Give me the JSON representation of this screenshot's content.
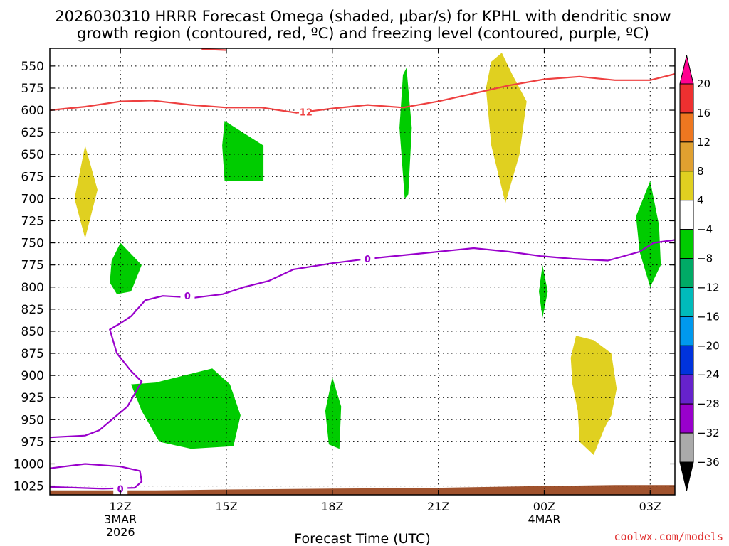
{
  "title": {
    "line1": "2026030310 HRRR Forecast Omega (shaded, μbar/s) for KPHL with dendritic snow",
    "line2": "growth region (contoured, red, ºC) and freezing level (contoured, purple, ºC)"
  },
  "chart_data": {
    "type": "time-height cross-section",
    "y_axis": {
      "unit": "hPa",
      "ticks": [
        550,
        575,
        600,
        625,
        650,
        675,
        700,
        725,
        750,
        775,
        800,
        825,
        850,
        875,
        900,
        925,
        950,
        975,
        1000,
        1025
      ],
      "range": [
        530,
        1035
      ],
      "grid": "dotted"
    },
    "x_axis": {
      "label": "Forecast Time (UTC)",
      "range_hours": [
        10,
        27.7
      ],
      "ticks": [
        {
          "hour": 12,
          "label": "12Z",
          "sub": [
            "3MAR",
            "2026"
          ]
        },
        {
          "hour": 15,
          "label": "15Z",
          "sub": []
        },
        {
          "hour": 18,
          "label": "18Z",
          "sub": []
        },
        {
          "hour": 21,
          "label": "21Z",
          "sub": []
        },
        {
          "hour": 24,
          "label": "00Z",
          "sub": [
            "4MAR"
          ]
        },
        {
          "hour": 27,
          "label": "03Z",
          "sub": []
        }
      ]
    },
    "colorbar": {
      "levels": [
        20,
        16,
        12,
        8,
        4,
        -4,
        -8,
        -12,
        -16,
        -20,
        -24,
        -28,
        -32,
        -36
      ],
      "colors": [
        "#ff0090",
        "#ee3030",
        "#ee7720",
        "#e0a030",
        "#e0d020",
        "#ffffff",
        "#00cc00",
        "#00aa66",
        "#00bbbb",
        "#0099ee",
        "#0033dd",
        "#6622cc",
        "#9900cc",
        "#aaaaaa",
        "#000000"
      ]
    },
    "contour_labels": {
      "dgz": "-12",
      "freezing": "0"
    },
    "omega_patches": [
      {
        "color": "#e0d020",
        "value_range": "4 to 8",
        "points": [
          [
            11.0,
            640
          ],
          [
            11.35,
            690
          ],
          [
            11.0,
            745
          ],
          [
            10.7,
            700
          ]
        ]
      },
      {
        "color": "#00cc00",
        "value_range": "-4 to -8",
        "points": [
          [
            12.0,
            750
          ],
          [
            12.6,
            775
          ],
          [
            12.3,
            805
          ],
          [
            11.9,
            808
          ],
          [
            11.7,
            795
          ],
          [
            11.75,
            770
          ]
        ]
      },
      {
        "color": "#00cc00",
        "value_range": "-4 to -8",
        "points": [
          [
            14.95,
            612
          ],
          [
            16.05,
            640
          ],
          [
            16.05,
            680
          ],
          [
            14.95,
            680
          ],
          [
            14.88,
            640
          ]
        ]
      },
      {
        "color": "#00cc00",
        "value_range": "-4 to -8",
        "points": [
          [
            12.3,
            910
          ],
          [
            13.0,
            908
          ],
          [
            14.6,
            892
          ],
          [
            15.1,
            910
          ],
          [
            15.4,
            945
          ],
          [
            15.2,
            980
          ],
          [
            14.0,
            983
          ],
          [
            13.1,
            975
          ],
          [
            12.6,
            940
          ]
        ]
      },
      {
        "color": "#00cc00",
        "value_range": "-4 to -8",
        "points": [
          [
            18.0,
            902
          ],
          [
            18.25,
            935
          ],
          [
            18.2,
            983
          ],
          [
            17.9,
            978
          ],
          [
            17.8,
            940
          ]
        ]
      },
      {
        "color": "#00cc00",
        "value_range": "-4 to -8",
        "points": [
          [
            20.1,
            552
          ],
          [
            20.25,
            620
          ],
          [
            20.15,
            695
          ],
          [
            20.05,
            700
          ],
          [
            19.9,
            620
          ],
          [
            20.0,
            560
          ]
        ]
      },
      {
        "color": "#00cc00",
        "value_range": "-4 to -8",
        "points": [
          [
            23.95,
            775
          ],
          [
            24.1,
            805
          ],
          [
            23.95,
            835
          ],
          [
            23.85,
            805
          ]
        ]
      },
      {
        "color": "#00cc00",
        "value_range": "-4 to -8",
        "points": [
          [
            27.0,
            680
          ],
          [
            27.25,
            730
          ],
          [
            27.3,
            775
          ],
          [
            27.0,
            800
          ],
          [
            26.7,
            760
          ],
          [
            26.6,
            720
          ]
        ]
      },
      {
        "color": "#e0d020",
        "value_range": "4 to 8",
        "points": [
          [
            22.8,
            535
          ],
          [
            23.1,
            560
          ],
          [
            23.5,
            590
          ],
          [
            23.3,
            650
          ],
          [
            22.9,
            705
          ],
          [
            22.5,
            640
          ],
          [
            22.35,
            575
          ],
          [
            22.5,
            545
          ]
        ]
      },
      {
        "color": "#e0d020",
        "value_range": "4 to 8",
        "points": [
          [
            24.9,
            855
          ],
          [
            25.4,
            860
          ],
          [
            25.9,
            875
          ],
          [
            26.05,
            915
          ],
          [
            25.9,
            945
          ],
          [
            25.7,
            960
          ],
          [
            25.4,
            990
          ],
          [
            25.0,
            975
          ],
          [
            24.95,
            940
          ],
          [
            24.8,
            910
          ],
          [
            24.75,
            880
          ]
        ]
      }
    ],
    "dgz_line": {
      "color": "#ee4040",
      "value": -12,
      "points": [
        [
          10,
          600
        ],
        [
          11,
          596
        ],
        [
          12,
          590
        ],
        [
          12.9,
          589
        ],
        [
          14,
          594
        ],
        [
          15,
          597
        ],
        [
          16,
          597
        ],
        [
          17,
          603
        ],
        [
          18,
          598
        ],
        [
          19,
          594
        ],
        [
          20,
          597
        ],
        [
          21,
          590
        ],
        [
          22,
          581
        ],
        [
          23,
          572
        ],
        [
          24,
          565
        ],
        [
          25,
          562
        ],
        [
          26,
          566
        ],
        [
          27,
          566
        ],
        [
          28,
          556
        ]
      ]
    },
    "dgz_top_fragment": {
      "color": "#ee4040",
      "points": [
        [
          14.3,
          531
        ],
        [
          15.0,
          532
        ]
      ]
    },
    "freezing_line": {
      "color": "#9900cc",
      "value": 0,
      "points": [
        [
          28,
          745
        ],
        [
          27.1,
          750
        ],
        [
          26.7,
          760
        ],
        [
          25.8,
          770
        ],
        [
          24.8,
          768
        ],
        [
          23.9,
          765
        ],
        [
          23.0,
          760
        ],
        [
          22.0,
          756
        ],
        [
          21.0,
          760
        ],
        [
          20.0,
          764
        ],
        [
          19.0,
          768
        ],
        [
          18.0,
          773
        ],
        [
          16.9,
          780
        ],
        [
          16.2,
          793
        ],
        [
          15.5,
          800
        ],
        [
          14.9,
          808
        ],
        [
          14.1,
          812
        ],
        [
          13.2,
          810
        ],
        [
          12.7,
          815
        ],
        [
          12.3,
          833
        ],
        [
          12.0,
          841
        ],
        [
          11.7,
          848
        ],
        [
          11.9,
          875
        ],
        [
          12.3,
          895
        ],
        [
          12.6,
          907
        ],
        [
          12.2,
          935
        ],
        [
          11.4,
          962
        ],
        [
          11.0,
          968
        ],
        [
          10.0,
          970
        ]
      ]
    },
    "freezing_lower": {
      "color": "#9900cc",
      "points": [
        [
          10,
          1005
        ],
        [
          11,
          1000
        ],
        [
          12,
          1003
        ],
        [
          12.55,
          1008
        ],
        [
          12.6,
          1020
        ],
        [
          12.4,
          1027
        ],
        [
          11.5,
          1028
        ],
        [
          10,
          1026
        ]
      ]
    },
    "terrain": {
      "color": "#a0522d",
      "points": [
        [
          10,
          1040
        ],
        [
          10,
          1030
        ],
        [
          13,
          1030
        ],
        [
          15,
          1029
        ],
        [
          18,
          1028
        ],
        [
          21,
          1027
        ],
        [
          24,
          1025
        ],
        [
          26,
          1024
        ],
        [
          28,
          1024
        ],
        [
          28,
          1040
        ]
      ]
    }
  },
  "credit": "coolwx.com/models"
}
